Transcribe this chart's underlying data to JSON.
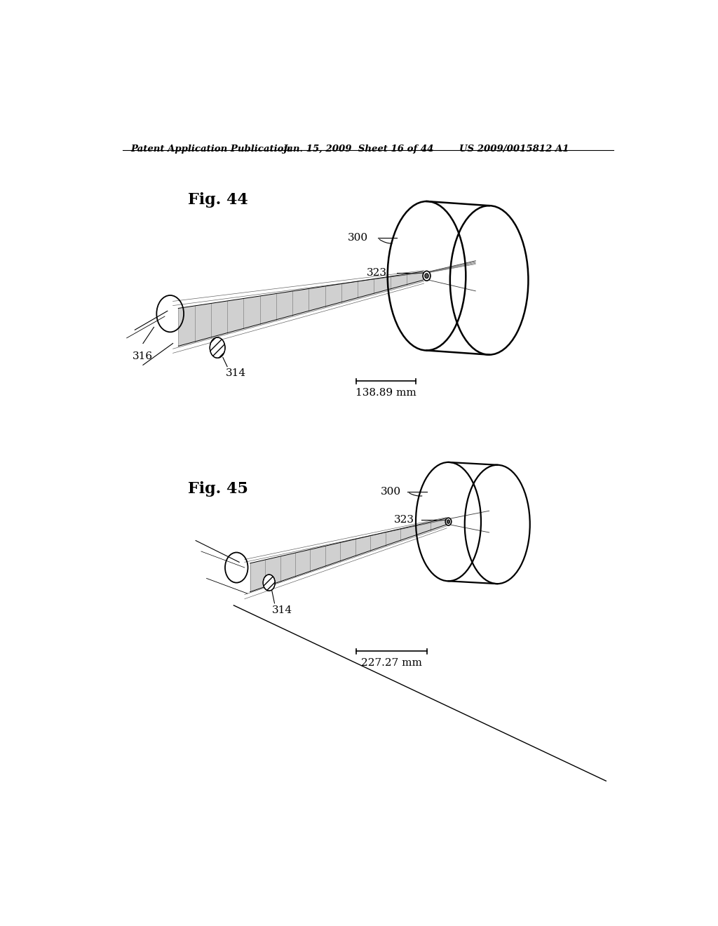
{
  "bg_color": "#ffffff",
  "header_left": "Patent Application Publication",
  "header_mid": "Jan. 15, 2009  Sheet 16 of 44",
  "header_right": "US 2009/0015812 A1",
  "fig44_label": "Fig. 44",
  "fig45_label": "Fig. 45",
  "scale1_text": "138.89 mm",
  "scale2_text": "227.27 mm",
  "label_300a": "300",
  "label_323a": "323",
  "label_316": "316",
  "label_314a": "314",
  "label_300b": "300",
  "label_323b": "323",
  "label_314b": "314",
  "line_color": "#000000",
  "beam_color": "#888888",
  "beam_alpha": 0.55
}
